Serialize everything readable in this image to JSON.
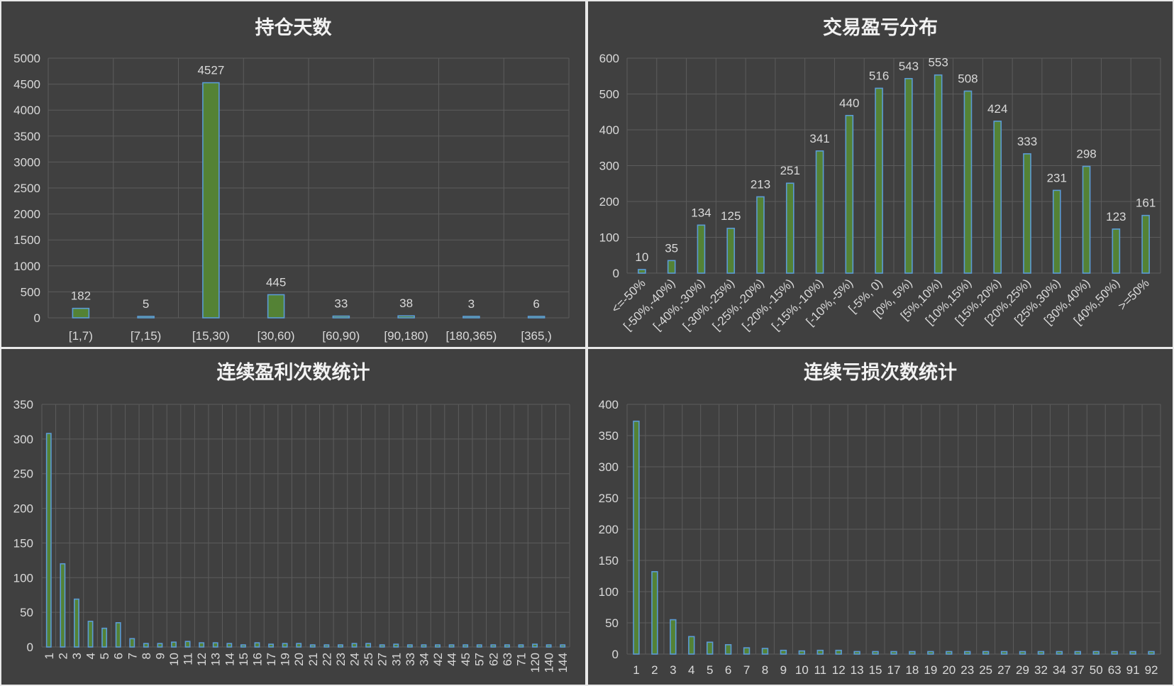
{
  "chart_data": [
    {
      "type": "bar",
      "title": "持仓天数",
      "categories": [
        "[1,7)",
        "[7,15)",
        "[15,30)",
        "[30,60)",
        "[60,90)",
        "[90,180)",
        "[180,365)",
        "[365,)"
      ],
      "values": [
        182,
        5,
        4527,
        445,
        33,
        38,
        3,
        6
      ],
      "ylim": [
        0,
        5000
      ],
      "yticks": [
        0,
        500,
        1000,
        1500,
        2000,
        2500,
        3000,
        3500,
        4000,
        4500,
        5000
      ],
      "data_labels": true,
      "grid": true,
      "xlabel_rotation": 0
    },
    {
      "type": "bar",
      "title": "交易盈亏分布",
      "categories": [
        "<=-50%",
        "[-50%,-40%)",
        "[-40%,-30%)",
        "[-30%,-25%)",
        "[-25%,-20%)",
        "[-20%,-15%)",
        "[-15%,-10%)",
        "[-10%,-5%)",
        "[-5%, 0)",
        "[0%, 5%)",
        "[5%,10%)",
        "[10%,15%)",
        "[15%,20%)",
        "[20%,25%)",
        "[25%,30%)",
        "[30%,40%)",
        "[40%,50%)",
        ">=50%"
      ],
      "values": [
        10,
        35,
        134,
        125,
        213,
        251,
        341,
        440,
        516,
        543,
        553,
        508,
        424,
        333,
        231,
        298,
        123,
        161
      ],
      "ylim": [
        0,
        600
      ],
      "yticks": [
        0,
        100,
        200,
        300,
        400,
        500,
        600
      ],
      "data_labels": true,
      "grid": true,
      "xlabel_rotation": -45
    },
    {
      "type": "bar",
      "title": "连续盈利次数统计",
      "categories": [
        "1",
        "2",
        "3",
        "4",
        "5",
        "6",
        "7",
        "8",
        "9",
        "10",
        "11",
        "12",
        "13",
        "14",
        "15",
        "16",
        "17",
        "19",
        "20",
        "21",
        "22",
        "23",
        "24",
        "25",
        "27",
        "31",
        "33",
        "34",
        "42",
        "44",
        "45",
        "57",
        "62",
        "63",
        "71",
        "120",
        "140",
        "144"
      ],
      "values": [
        308,
        120,
        69,
        37,
        27,
        35,
        12,
        5,
        5,
        7,
        8,
        6,
        6,
        5,
        3,
        6,
        4,
        5,
        5,
        3,
        3,
        3,
        5,
        5,
        3,
        4,
        3,
        3,
        3,
        3,
        3,
        3,
        3,
        3,
        3,
        4,
        3,
        3
      ],
      "ylim": [
        0,
        350
      ],
      "yticks": [
        0,
        50,
        100,
        150,
        200,
        250,
        300,
        350
      ],
      "data_labels": false,
      "grid": true,
      "xlabel_rotation": -90
    },
    {
      "type": "bar",
      "title": "连续亏损次数统计",
      "categories": [
        "1",
        "2",
        "3",
        "4",
        "5",
        "6",
        "7",
        "8",
        "9",
        "10",
        "11",
        "12",
        "13",
        "15",
        "17",
        "18",
        "19",
        "20",
        "23",
        "25",
        "27",
        "29",
        "32",
        "34",
        "37",
        "50",
        "63",
        "91",
        "92"
      ],
      "values": [
        373,
        132,
        55,
        28,
        19,
        15,
        10,
        9,
        6,
        5,
        6,
        6,
        4,
        4,
        4,
        4,
        4,
        4,
        4,
        4,
        4,
        4,
        4,
        4,
        4,
        4,
        4,
        4,
        4
      ],
      "ylim": [
        0,
        400
      ],
      "yticks": [
        0,
        50,
        100,
        150,
        200,
        250,
        300,
        350,
        400
      ],
      "data_labels": false,
      "grid": true,
      "xlabel_rotation": 0
    }
  ]
}
